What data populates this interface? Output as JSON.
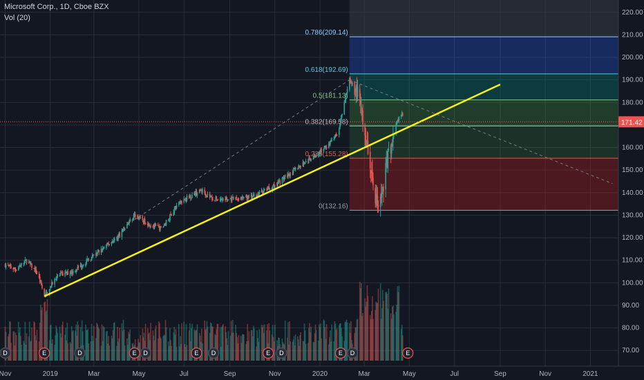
{
  "header": {
    "title": "Microsoft Corp., 1D, Cboe BZX",
    "volume_label": "Vol (20)"
  },
  "colors": {
    "background": "#131722",
    "grid": "#2a2e39",
    "up": "#26a69a",
    "down": "#ef5350",
    "trendline": "#f5f116",
    "price_label_bg": "#ef5350",
    "fib_blue": "#2962ff",
    "fib_teal": "#00897b",
    "fib_green": "#43a047",
    "fib_red": "#b71c1c"
  },
  "chart_data": {
    "type": "candlestick",
    "symbol": "Microsoft Corp.",
    "interval": "1D",
    "exchange": "Cboe BZX",
    "y_axis": {
      "range": [
        67,
        223
      ],
      "ticks": [
        70,
        80,
        90,
        100,
        110,
        120,
        130,
        140,
        150,
        160,
        170,
        180,
        190,
        200,
        210,
        220
      ],
      "tick_labels": [
        "70.00",
        "80.00",
        "90.00",
        "100.00",
        "110.00",
        "120.00",
        "130.00",
        "140.00",
        "150.00",
        "160.00",
        "170.00",
        "180.00",
        "190.00",
        "200.00",
        "210.00",
        "220.00"
      ]
    },
    "x_axis": {
      "labels": [
        "Nov",
        "2019",
        "Mar",
        "May",
        "Jul",
        "Sep",
        "Nov",
        "2020",
        "Mar",
        "May",
        "Jul",
        "Sep",
        "Nov",
        "2021"
      ]
    },
    "last_price": "171.42",
    "price_path": [
      [
        "2018-11-01",
        108
      ],
      [
        "2018-11-15",
        106
      ],
      [
        "2018-11-30",
        110
      ],
      [
        "2018-12-15",
        104
      ],
      [
        "2018-12-24",
        94
      ],
      [
        "2019-01-10",
        103
      ],
      [
        "2019-02-01",
        105
      ],
      [
        "2019-03-01",
        112
      ],
      [
        "2019-04-01",
        120
      ],
      [
        "2019-04-25",
        130
      ],
      [
        "2019-05-15",
        126
      ],
      [
        "2019-06-01",
        124
      ],
      [
        "2019-06-25",
        136
      ],
      [
        "2019-07-25",
        141
      ],
      [
        "2019-08-10",
        137
      ],
      [
        "2019-09-01",
        137
      ],
      [
        "2019-10-01",
        138
      ],
      [
        "2019-10-31",
        143
      ],
      [
        "2019-12-01",
        151
      ],
      [
        "2020-01-01",
        158
      ],
      [
        "2020-01-25",
        166
      ],
      [
        "2020-02-10",
        190
      ],
      [
        "2020-02-20",
        186
      ],
      [
        "2020-03-01",
        168
      ],
      [
        "2020-03-10",
        150
      ],
      [
        "2020-03-16",
        138
      ],
      [
        "2020-03-23",
        135
      ],
      [
        "2020-04-01",
        155
      ],
      [
        "2020-04-15",
        172
      ],
      [
        "2020-04-22",
        175
      ]
    ],
    "fibonacci": {
      "levels": [
        {
          "label": "0.786(209.14)",
          "price": 209.14
        },
        {
          "label": "0.618(192.69)",
          "price": 192.69
        },
        {
          "label": "0.5(181.13)",
          "price": 181.13
        },
        {
          "label": "0.382(169.58)",
          "price": 169.58
        },
        {
          "label": "0.236(155.28)",
          "price": 155.28
        },
        {
          "label": "0(132.16)",
          "price": 132.16
        }
      ]
    },
    "trendline": {
      "start": [
        "2018-12-24",
        94
      ],
      "end": [
        "2020-09-01",
        188
      ]
    },
    "dashed_projection": {
      "start": [
        "2020-02-10",
        190
      ],
      "end": [
        "2021-01-31",
        144
      ]
    },
    "event_markers": [
      [
        "2018-11-01",
        "D"
      ],
      [
        "2018-12-24",
        "E"
      ],
      [
        "2019-02-10",
        "D"
      ],
      [
        "2019-04-25",
        "E"
      ],
      [
        "2019-05-10",
        "D"
      ],
      [
        "2019-07-18",
        "E"
      ],
      [
        "2019-08-10",
        "D"
      ],
      [
        "2019-10-23",
        "E"
      ],
      [
        "2019-11-10",
        "D"
      ],
      [
        "2020-01-29",
        "E"
      ],
      [
        "2020-02-14",
        "D"
      ],
      [
        "2020-04-29",
        "E"
      ]
    ],
    "volume_series_name": "Vol (20)"
  }
}
